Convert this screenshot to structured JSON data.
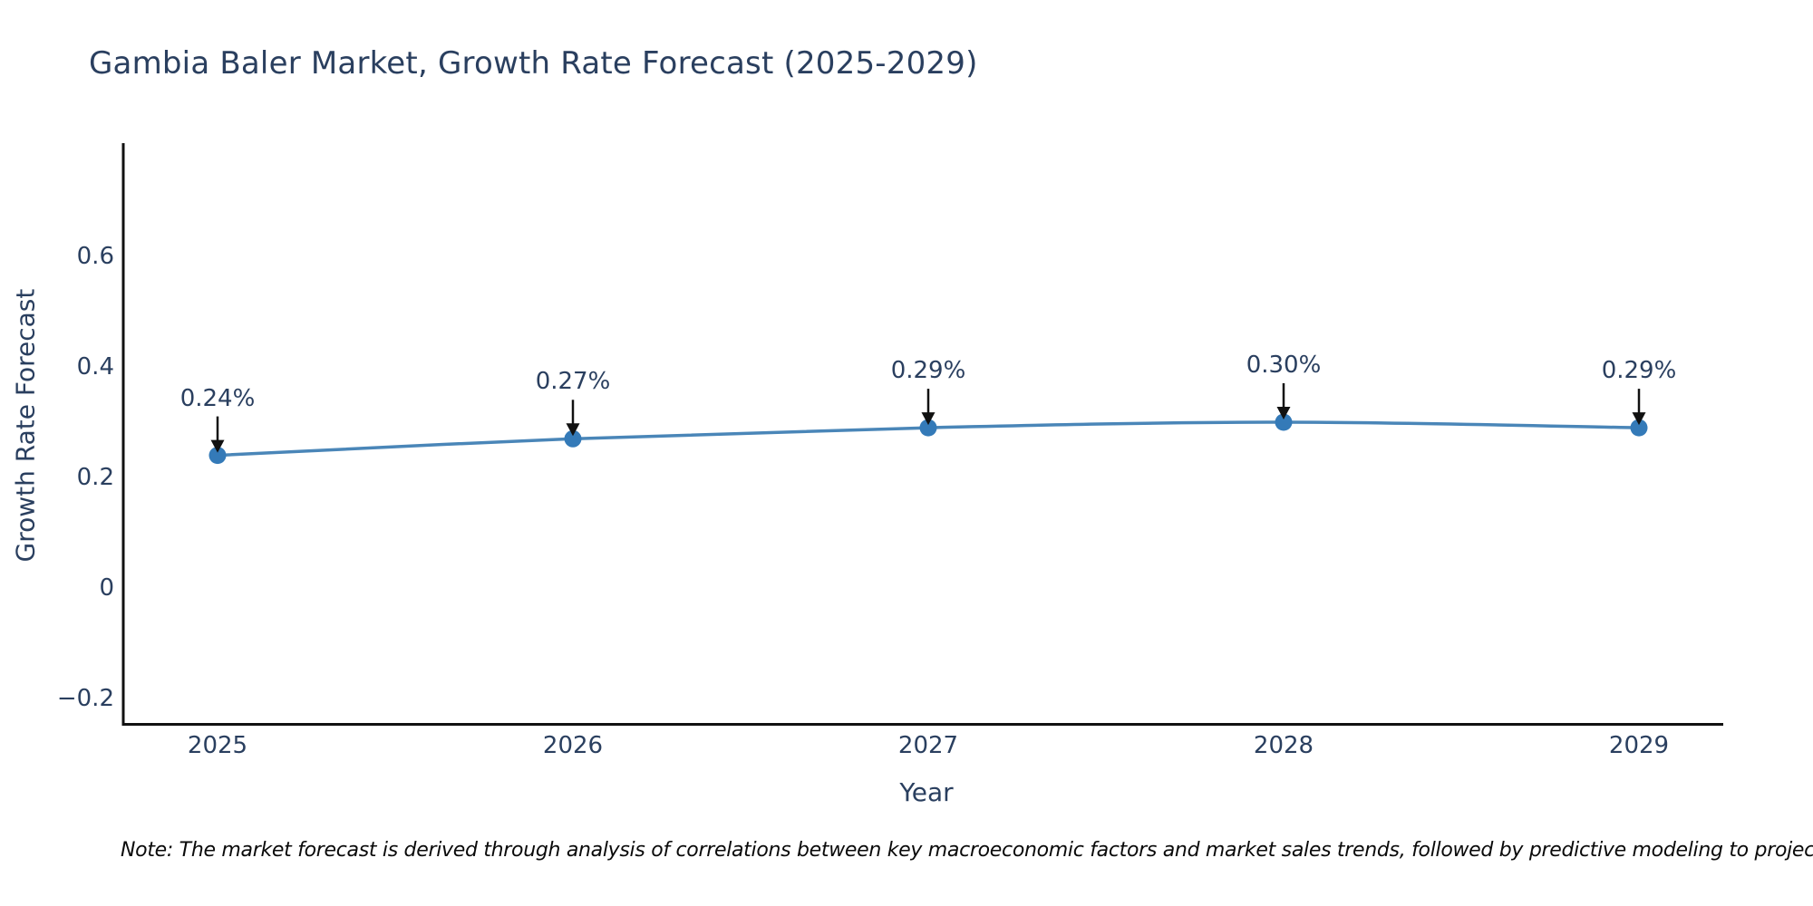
{
  "figure": {
    "title": "Gambia Baler Market, Growth Rate Forecast (2025-2029)",
    "note": "Note: The market forecast is derived through analysis of correlations between key macroeconomic factors and market sales trends, followed by predictive modeling to project future sales..."
  },
  "chart_data": {
    "type": "line",
    "title": "Gambia Baler Market, Growth Rate Forecast (2025-2029)",
    "xlabel": "Year",
    "ylabel": "Growth Rate Forecast",
    "categories": [
      "2025",
      "2026",
      "2027",
      "2028",
      "2029"
    ],
    "values": [
      0.24,
      0.27,
      0.29,
      0.3,
      0.29
    ],
    "point_labels": [
      "0.24%",
      "0.27%",
      "0.29%",
      "0.30%",
      "0.29%"
    ],
    "y_ticks": [
      0.6,
      0.4,
      0.2,
      0,
      -0.2
    ],
    "y_tick_labels": [
      "0.6",
      "0.4",
      "0.2",
      "0",
      "−0.2"
    ],
    "ylim": [
      -0.28,
      0.8
    ],
    "grid": false,
    "legend_position": "none",
    "colors": {
      "line": "#4a86b8",
      "marker": "#347ab8",
      "axis": "#111111",
      "arrow": "#111111",
      "text": "#2a3f5f"
    }
  }
}
